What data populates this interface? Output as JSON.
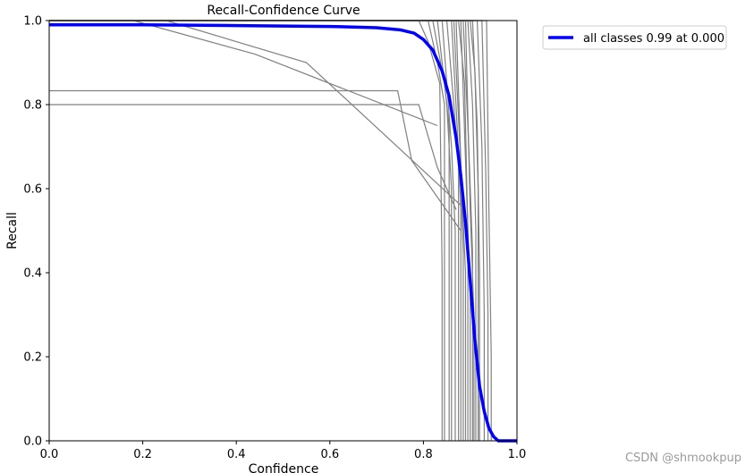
{
  "chart_data": {
    "type": "line",
    "title": "Recall-Confidence Curve",
    "xlabel": "Confidence",
    "ylabel": "Recall",
    "xlim": [
      0.0,
      1.0
    ],
    "ylim": [
      0.0,
      1.0
    ],
    "x_ticks": [
      "0.0",
      "0.2",
      "0.4",
      "0.6",
      "0.8",
      "1.0"
    ],
    "y_ticks": [
      "0.0",
      "0.2",
      "0.4",
      "0.6",
      "0.8",
      "1.0"
    ],
    "grid": false,
    "legend": {
      "position": "outside-top-right",
      "entries": [
        "all classes 0.99 at 0.000"
      ]
    },
    "series": [
      {
        "name": "all classes 0.99 at 0.000",
        "color": "#0000ff",
        "x": [
          0.0,
          0.2,
          0.4,
          0.6,
          0.7,
          0.75,
          0.78,
          0.8,
          0.82,
          0.84,
          0.855,
          0.87,
          0.88,
          0.89,
          0.9,
          0.91,
          0.92,
          0.93,
          0.94,
          0.95,
          0.96,
          0.97,
          1.0
        ],
        "y": [
          0.99,
          0.99,
          0.988,
          0.986,
          0.983,
          0.978,
          0.97,
          0.955,
          0.93,
          0.88,
          0.82,
          0.72,
          0.63,
          0.52,
          0.38,
          0.24,
          0.13,
          0.07,
          0.03,
          0.01,
          0.0,
          0.0,
          0.0
        ]
      }
    ],
    "class_curves": [
      {
        "x": [
          0.0,
          0.745,
          0.775,
          0.88
        ],
        "y": [
          0.833,
          0.833,
          0.667,
          0.5
        ]
      },
      {
        "x": [
          0.0,
          0.79,
          0.83,
          0.87
        ],
        "y": [
          0.8,
          0.8,
          0.65,
          0.55
        ]
      },
      {
        "x": [
          0.0,
          0.18,
          0.44,
          0.83
        ],
        "y": [
          1.0,
          1.0,
          0.92,
          0.75
        ]
      },
      {
        "x": [
          0.0,
          0.25,
          0.55,
          0.89
        ],
        "y": [
          1.0,
          1.0,
          0.9,
          0.55
        ]
      },
      {
        "x": [
          0.0,
          0.79,
          0.81,
          0.835,
          0.84,
          0.84
        ],
        "y": [
          1.0,
          1.0,
          0.95,
          0.85,
          0.4,
          0.0
        ]
      },
      {
        "x": [
          0.0,
          0.81,
          0.83,
          0.845,
          0.845
        ],
        "y": [
          1.0,
          1.0,
          0.9,
          0.8,
          0.0
        ]
      },
      {
        "x": [
          0.0,
          0.82,
          0.845,
          0.855,
          0.855
        ],
        "y": [
          1.0,
          1.0,
          0.85,
          0.75,
          0.0
        ]
      },
      {
        "x": [
          0.0,
          0.83,
          0.85,
          0.86,
          0.86
        ],
        "y": [
          1.0,
          1.0,
          0.8,
          0.6,
          0.0
        ]
      },
      {
        "x": [
          0.0,
          0.84,
          0.86,
          0.868,
          0.868
        ],
        "y": [
          1.0,
          1.0,
          0.7,
          0.5,
          0.0
        ]
      },
      {
        "x": [
          0.0,
          0.85,
          0.865,
          0.875,
          0.875
        ],
        "y": [
          1.0,
          1.0,
          0.8,
          0.65,
          0.0
        ]
      },
      {
        "x": [
          0.0,
          0.86,
          0.872,
          0.88,
          0.88
        ],
        "y": [
          1.0,
          1.0,
          0.75,
          0.55,
          0.0
        ]
      },
      {
        "x": [
          0.0,
          0.865,
          0.878,
          0.885,
          0.885
        ],
        "y": [
          1.0,
          1.0,
          0.7,
          0.45,
          0.0
        ]
      },
      {
        "x": [
          0.0,
          0.87,
          0.882,
          0.89,
          0.89
        ],
        "y": [
          1.0,
          1.0,
          0.6,
          0.4,
          0.0
        ]
      },
      {
        "x": [
          0.0,
          0.875,
          0.888,
          0.895,
          0.895
        ],
        "y": [
          1.0,
          1.0,
          0.85,
          0.5,
          0.0
        ]
      },
      {
        "x": [
          0.0,
          0.88,
          0.892,
          0.9,
          0.9
        ],
        "y": [
          1.0,
          1.0,
          0.6,
          0.35,
          0.0
        ]
      },
      {
        "x": [
          0.0,
          0.885,
          0.897,
          0.905,
          0.905
        ],
        "y": [
          1.0,
          1.0,
          0.7,
          0.45,
          0.0
        ]
      },
      {
        "x": [
          0.0,
          0.89,
          0.9,
          0.908,
          0.908
        ],
        "y": [
          1.0,
          1.0,
          0.55,
          0.3,
          0.0
        ]
      },
      {
        "x": [
          0.0,
          0.895,
          0.905,
          0.912,
          0.912
        ],
        "y": [
          1.0,
          1.0,
          0.8,
          0.5,
          0.0
        ]
      },
      {
        "x": [
          0.0,
          0.9,
          0.91,
          0.917,
          0.917
        ],
        "y": [
          1.0,
          1.0,
          0.88,
          0.6,
          0.0
        ]
      },
      {
        "x": [
          0.0,
          0.905,
          0.915,
          0.92,
          0.92
        ],
        "y": [
          1.0,
          1.0,
          0.75,
          0.4,
          0.0
        ]
      },
      {
        "x": [
          0.0,
          0.915,
          0.925,
          0.93,
          0.93
        ],
        "y": [
          1.0,
          1.0,
          0.7,
          0.3,
          0.0
        ]
      },
      {
        "x": [
          0.0,
          0.925,
          0.933,
          0.938,
          0.938
        ],
        "y": [
          1.0,
          1.0,
          0.65,
          0.3,
          0.0
        ]
      },
      {
        "x": [
          0.0,
          0.935,
          0.94,
          0.945,
          0.945
        ],
        "y": [
          1.0,
          1.0,
          0.55,
          0.2,
          0.0
        ]
      }
    ]
  },
  "watermark": "CSDN @shmookpup"
}
